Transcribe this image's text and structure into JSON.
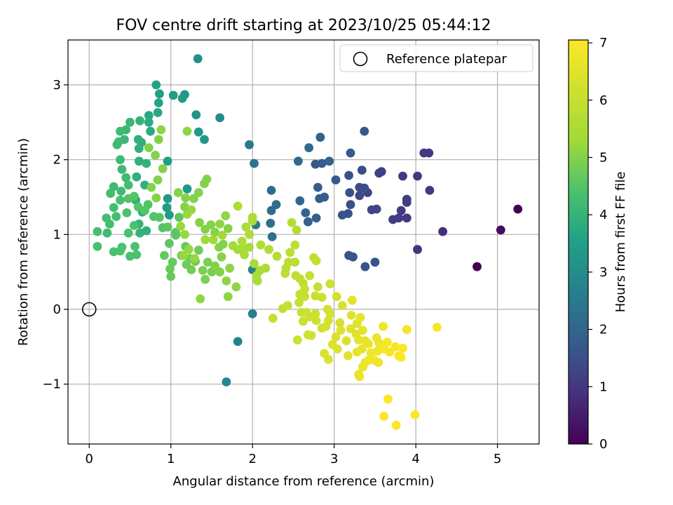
{
  "chart_data": {
    "type": "scatter",
    "title": "FOV centre drift starting at 2023/10/25 05:44:12",
    "xlabel": "Angular distance from reference (arcmin)",
    "ylabel": "Rotation from reference (arcmin)",
    "xlim": [
      -0.26,
      5.51
    ],
    "ylim": [
      -1.8,
      3.6
    ],
    "xticks": [
      0,
      1,
      2,
      3,
      4,
      5
    ],
    "xtick_labels": [
      "0",
      "1",
      "2",
      "3",
      "4",
      "5"
    ],
    "yticks": [
      -1,
      0,
      1,
      2,
      3
    ],
    "ytick_labels": [
      "−1",
      "0",
      "1",
      "2",
      "3"
    ],
    "grid": true,
    "legend": {
      "label": "Reference platepar",
      "position": "upper right",
      "marker": "open circle"
    },
    "reference_point": {
      "x": 0,
      "y": 0
    },
    "colorbar": {
      "label": "Hours from first FF file",
      "colormap": "viridis",
      "range": [
        0,
        7.05
      ],
      "ticks": [
        0,
        1,
        2,
        3,
        4,
        5,
        6,
        7
      ],
      "tick_labels": [
        "0",
        "1",
        "2",
        "3",
        "4",
        "5",
        "6",
        "7"
      ]
    },
    "points": [
      [
        5.25,
        1.34,
        0.0
      ],
      [
        4.75,
        0.57,
        0.0
      ],
      [
        5.04,
        1.06,
        0.2
      ],
      [
        4.33,
        1.04,
        0.8
      ],
      [
        4.02,
        0.8,
        0.9
      ],
      [
        4.17,
        1.59,
        1.0
      ],
      [
        4.02,
        1.78,
        1.0
      ],
      [
        3.84,
        1.78,
        1.0
      ],
      [
        4.1,
        2.09,
        1.0
      ],
      [
        4.16,
        2.09,
        1.0
      ],
      [
        3.82,
        1.32,
        1.1
      ],
      [
        3.89,
        1.47,
        1.1
      ],
      [
        3.89,
        1.43,
        1.1
      ],
      [
        3.89,
        1.22,
        1.0
      ],
      [
        3.79,
        1.22,
        1.1
      ],
      [
        3.72,
        1.2,
        1.1
      ],
      [
        3.58,
        1.84,
        1.2
      ],
      [
        3.55,
        1.82,
        1.2
      ],
      [
        3.41,
        1.56,
        1.3
      ],
      [
        3.52,
        1.34,
        1.3
      ],
      [
        3.46,
        1.33,
        1.3
      ],
      [
        3.37,
        1.62,
        1.4
      ],
      [
        3.31,
        1.52,
        1.4
      ],
      [
        3.31,
        1.63,
        1.4
      ],
      [
        3.34,
        1.86,
        1.4
      ],
      [
        3.37,
        2.38,
        1.7
      ],
      [
        3.18,
        1.79,
        1.5
      ],
      [
        3.19,
        1.56,
        1.5
      ],
      [
        3.2,
        1.4,
        1.5
      ],
      [
        3.17,
        1.28,
        1.5
      ],
      [
        3.1,
        1.26,
        1.6
      ],
      [
        3.2,
        2.09,
        1.7
      ],
      [
        3.18,
        0.72,
        1.6
      ],
      [
        3.23,
        0.7,
        1.6
      ],
      [
        3.38,
        0.57,
        1.6
      ],
      [
        3.5,
        0.63,
        1.6
      ],
      [
        3.02,
        1.73,
        1.7
      ],
      [
        2.88,
        1.5,
        1.8
      ],
      [
        2.8,
        1.63,
        1.8
      ],
      [
        2.77,
        1.94,
        1.7
      ],
      [
        2.85,
        1.95,
        1.8
      ],
      [
        2.83,
        2.3,
        1.9
      ],
      [
        2.94,
        1.98,
        1.9
      ],
      [
        2.82,
        1.48,
        1.8
      ],
      [
        2.78,
        1.22,
        1.9
      ],
      [
        2.68,
        1.17,
        1.9
      ],
      [
        2.65,
        1.29,
        2.0
      ],
      [
        2.58,
        1.45,
        2.0
      ],
      [
        2.56,
        1.98,
        2.1
      ],
      [
        2.69,
        2.16,
        2.1
      ],
      [
        2.29,
        1.4,
        2.2
      ],
      [
        2.23,
        1.59,
        2.2
      ],
      [
        2.23,
        1.32,
        2.2
      ],
      [
        2.22,
        1.15,
        2.3
      ],
      [
        2.24,
        0.97,
        2.3
      ],
      [
        2.02,
        1.95,
        2.4
      ],
      [
        1.96,
        2.2,
        2.5
      ],
      [
        2.04,
        1.13,
        2.5
      ],
      [
        2.0,
        0.53,
        2.6
      ],
      [
        2.0,
        -0.06,
        2.6
      ],
      [
        1.82,
        -0.43,
        2.7
      ],
      [
        1.68,
        -0.97,
        2.8
      ],
      [
        1.6,
        2.56,
        3.0
      ],
      [
        1.33,
        3.35,
        3.1
      ],
      [
        1.41,
        2.27,
        3.3
      ],
      [
        1.34,
        2.37,
        3.3
      ],
      [
        1.31,
        2.6,
        3.2
      ],
      [
        1.2,
        1.61,
        3.3
      ],
      [
        1.17,
        2.87,
        3.3
      ],
      [
        1.14,
        2.82,
        3.4
      ],
      [
        1.03,
        2.86,
        3.4
      ],
      [
        0.96,
        1.48,
        3.3
      ],
      [
        0.95,
        1.36,
        3.4
      ],
      [
        0.98,
        1.26,
        3.4
      ],
      [
        0.96,
        1.98,
        3.5
      ],
      [
        0.86,
        2.88,
        3.5
      ],
      [
        0.85,
        2.76,
        3.6
      ],
      [
        0.82,
        3.0,
        3.6
      ],
      [
        0.84,
        2.63,
        3.7
      ],
      [
        0.73,
        2.59,
        3.7
      ],
      [
        0.75,
        2.38,
        3.8
      ],
      [
        0.73,
        2.5,
        3.8
      ],
      [
        0.64,
        2.23,
        3.9
      ],
      [
        0.61,
        2.15,
        3.9
      ],
      [
        0.6,
        2.27,
        3.9
      ],
      [
        0.61,
        1.98,
        3.9
      ],
      [
        0.58,
        1.77,
        3.9
      ],
      [
        0.57,
        1.46,
        3.9
      ],
      [
        0.61,
        1.14,
        4.0
      ],
      [
        0.62,
        1.02,
        4.0
      ],
      [
        0.65,
        1.3,
        3.9
      ],
      [
        0.7,
        1.05,
        3.9
      ],
      [
        0.68,
        1.66,
        3.9
      ],
      [
        0.7,
        1.95,
        4.0
      ],
      [
        0.62,
        2.52,
        4.0
      ],
      [
        0.5,
        2.5,
        4.1
      ],
      [
        0.45,
        2.4,
        4.1
      ],
      [
        0.43,
        2.27,
        4.1
      ],
      [
        0.38,
        2.38,
        4.2
      ],
      [
        0.36,
        2.24,
        4.2
      ],
      [
        0.34,
        2.2,
        4.2
      ],
      [
        0.38,
        2.0,
        4.2
      ],
      [
        0.4,
        1.87,
        4.2
      ],
      [
        0.45,
        1.76,
        4.2
      ],
      [
        0.48,
        1.66,
        4.3
      ],
      [
        0.39,
        1.58,
        4.2
      ],
      [
        0.3,
        1.64,
        4.2
      ],
      [
        0.26,
        1.55,
        4.3
      ],
      [
        0.3,
        1.36,
        4.3
      ],
      [
        0.33,
        1.24,
        4.3
      ],
      [
        0.25,
        1.14,
        4.3
      ],
      [
        0.21,
        1.22,
        4.3
      ],
      [
        0.22,
        1.02,
        4.2
      ],
      [
        0.1,
        1.04,
        4.3
      ],
      [
        0.1,
        0.84,
        4.4
      ],
      [
        0.3,
        0.77,
        4.4
      ],
      [
        0.38,
        0.78,
        4.4
      ],
      [
        0.4,
        0.83,
        4.4
      ],
      [
        0.5,
        0.71,
        4.4
      ],
      [
        0.56,
        0.84,
        4.4
      ],
      [
        0.58,
        0.73,
        4.4
      ],
      [
        0.48,
        1.02,
        4.4
      ],
      [
        0.55,
        1.12,
        4.4
      ],
      [
        0.46,
        1.29,
        4.4
      ],
      [
        0.38,
        1.46,
        4.4
      ],
      [
        0.48,
        1.48,
        4.5
      ],
      [
        0.55,
        1.51,
        4.5
      ],
      [
        0.6,
        1.37,
        4.5
      ],
      [
        0.68,
        1.32,
        4.5
      ],
      [
        0.72,
        1.4,
        4.5
      ],
      [
        0.79,
        1.24,
        4.5
      ],
      [
        0.86,
        1.23,
        4.5
      ],
      [
        0.9,
        1.09,
        4.5
      ],
      [
        0.96,
        1.1,
        4.6
      ],
      [
        1.06,
        0.99,
        4.6
      ],
      [
        1.1,
        1.23,
        4.6
      ],
      [
        1.06,
        1.03,
        4.6
      ],
      [
        0.98,
        0.88,
        4.6
      ],
      [
        0.92,
        0.72,
        4.7
      ],
      [
        1.02,
        0.63,
        4.7
      ],
      [
        1.0,
        0.44,
        4.7
      ],
      [
        0.99,
        0.54,
        4.7
      ],
      [
        1.13,
        0.72,
        4.7
      ],
      [
        1.18,
        0.84,
        4.7
      ],
      [
        1.19,
        0.6,
        4.8
      ],
      [
        1.25,
        0.53,
        4.8
      ],
      [
        1.23,
        0.68,
        4.8
      ],
      [
        1.3,
        0.64,
        4.8
      ],
      [
        1.34,
        0.79,
        4.8
      ],
      [
        1.39,
        0.52,
        4.9
      ],
      [
        1.42,
        0.4,
        4.9
      ],
      [
        1.45,
        0.63,
        4.9
      ],
      [
        1.5,
        0.5,
        4.9
      ],
      [
        1.54,
        0.58,
        5.0
      ],
      [
        1.62,
        0.7,
        5.0
      ],
      [
        1.6,
        0.5,
        5.0
      ],
      [
        1.59,
        0.83,
        5.0
      ],
      [
        1.64,
        0.87,
        5.0
      ],
      [
        1.72,
        0.55,
        5.1
      ],
      [
        1.7,
        0.17,
        5.1
      ],
      [
        1.68,
        0.38,
        5.1
      ],
      [
        1.8,
        0.3,
        5.1
      ],
      [
        1.36,
        0.14,
        5.1
      ],
      [
        1.35,
        1.16,
        5.0
      ],
      [
        1.42,
        1.07,
        5.0
      ],
      [
        1.49,
        1.13,
        5.0
      ],
      [
        1.54,
        1.03,
        5.0
      ],
      [
        1.7,
        1.08,
        5.0
      ],
      [
        1.6,
        1.14,
        5.1
      ],
      [
        1.67,
        1.25,
        5.1
      ],
      [
        1.41,
        1.68,
        5.0
      ],
      [
        1.44,
        1.74,
        5.0
      ],
      [
        1.34,
        1.56,
        5.0
      ],
      [
        1.28,
        1.48,
        5.0
      ],
      [
        1.17,
        1.37,
        5.0
      ],
      [
        1.18,
        1.49,
        5.0
      ],
      [
        1.09,
        1.56,
        5.0
      ],
      [
        0.82,
        1.49,
        5.0
      ],
      [
        0.76,
        1.63,
        5.0
      ],
      [
        0.84,
        1.73,
        5.0
      ],
      [
        0.9,
        1.88,
        5.0
      ],
      [
        0.81,
        2.06,
        5.0
      ],
      [
        0.73,
        2.16,
        5.0
      ],
      [
        0.85,
        2.27,
        5.0
      ],
      [
        0.88,
        2.4,
        5.1
      ],
      [
        1.2,
        2.38,
        5.1
      ],
      [
        1.25,
        1.33,
        5.2
      ],
      [
        1.2,
        1.27,
        5.2
      ],
      [
        1.12,
        1.11,
        5.2
      ],
      [
        1.17,
        1.0,
        5.2
      ],
      [
        1.15,
        0.72,
        5.2
      ],
      [
        1.22,
        0.8,
        5.2
      ],
      [
        1.29,
        0.68,
        5.2
      ],
      [
        1.42,
        0.93,
        5.3
      ],
      [
        1.52,
        0.93,
        5.3
      ],
      [
        1.63,
        0.99,
        5.3
      ],
      [
        1.76,
        0.85,
        5.3
      ],
      [
        1.82,
        0.8,
        5.4
      ],
      [
        1.88,
        0.83,
        5.4
      ],
      [
        1.9,
        0.73,
        5.4
      ],
      [
        1.96,
        0.83,
        5.4
      ],
      [
        2.02,
        0.61,
        5.4
      ],
      [
        2.05,
        0.45,
        5.5
      ],
      [
        2.09,
        0.52,
        5.5
      ],
      [
        2.06,
        0.38,
        5.5
      ],
      [
        2.16,
        0.55,
        5.5
      ],
      [
        2.2,
        0.8,
        5.6
      ],
      [
        2.1,
        0.86,
        5.6
      ],
      [
        2.0,
        1.18,
        5.5
      ],
      [
        2.0,
        1.23,
        5.5
      ],
      [
        1.92,
        1.1,
        5.5
      ],
      [
        1.82,
        1.38,
        5.5
      ],
      [
        1.87,
        0.91,
        5.6
      ],
      [
        1.96,
        1.0,
        5.6
      ],
      [
        2.3,
        0.71,
        5.7
      ],
      [
        2.4,
        0.48,
        5.8
      ],
      [
        2.41,
        0.55,
        5.8
      ],
      [
        2.44,
        0.63,
        5.8
      ],
      [
        2.46,
        0.76,
        5.8
      ],
      [
        2.52,
        0.86,
        5.8
      ],
      [
        2.52,
        0.63,
        5.8
      ],
      [
        2.53,
        0.45,
        5.9
      ],
      [
        2.58,
        0.41,
        5.9
      ],
      [
        2.62,
        0.35,
        5.9
      ],
      [
        2.64,
        0.27,
        6.0
      ],
      [
        2.7,
        0.45,
        6.0
      ],
      [
        2.64,
        0.17,
        6.0
      ],
      [
        2.58,
        0.2,
        6.0
      ],
      [
        2.57,
        0.09,
        6.0
      ],
      [
        2.6,
        -0.04,
        6.0
      ],
      [
        2.66,
        -0.04,
        6.1
      ],
      [
        2.62,
        -0.16,
        6.1
      ],
      [
        2.7,
        -0.1,
        6.1
      ],
      [
        2.78,
        -0.15,
        6.1
      ],
      [
        2.77,
        -0.06,
        6.1
      ],
      [
        2.77,
        0.18,
        6.0
      ],
      [
        2.8,
        0.3,
        6.0
      ],
      [
        2.78,
        0.65,
        5.9
      ],
      [
        2.75,
        0.69,
        5.9
      ],
      [
        2.48,
        1.16,
        5.7
      ],
      [
        2.54,
        1.06,
        5.7
      ],
      [
        2.37,
        0.01,
        5.9
      ],
      [
        2.43,
        0.05,
        6.0
      ],
      [
        2.25,
        -0.12,
        6.0
      ],
      [
        2.55,
        -0.41,
        6.1
      ],
      [
        2.68,
        -0.34,
        6.2
      ],
      [
        2.72,
        -0.35,
        6.2
      ],
      [
        2.85,
        -0.25,
        6.2
      ],
      [
        2.9,
        -0.23,
        6.2
      ],
      [
        2.93,
        -0.15,
        6.2
      ],
      [
        2.95,
        -0.06,
        6.3
      ],
      [
        2.92,
        0.0,
        6.2
      ],
      [
        2.85,
        0.16,
        6.1
      ],
      [
        2.95,
        0.34,
        6.1
      ],
      [
        3.03,
        0.17,
        6.2
      ],
      [
        3.1,
        0.05,
        6.3
      ],
      [
        3.07,
        -0.18,
        6.3
      ],
      [
        3.08,
        -0.28,
        6.4
      ],
      [
        3.02,
        -0.37,
        6.4
      ],
      [
        3.04,
        -0.53,
        6.4
      ],
      [
        2.98,
        -0.47,
        6.4
      ],
      [
        2.88,
        -0.59,
        6.4
      ],
      [
        2.93,
        -0.67,
        6.4
      ],
      [
        3.15,
        -0.42,
        6.4
      ],
      [
        3.17,
        -0.62,
        6.5
      ],
      [
        3.2,
        -0.26,
        6.5
      ],
      [
        3.21,
        -0.08,
        6.5
      ],
      [
        3.22,
        0.12,
        6.5
      ],
      [
        3.28,
        -0.19,
        6.5
      ],
      [
        3.27,
        -0.33,
        6.5
      ],
      [
        3.32,
        -0.11,
        6.6
      ],
      [
        3.35,
        -0.28,
        6.6
      ],
      [
        3.38,
        -0.42,
        6.6
      ],
      [
        3.34,
        -0.53,
        6.6
      ],
      [
        3.28,
        -0.57,
        6.6
      ],
      [
        3.3,
        -0.87,
        6.6
      ],
      [
        3.31,
        -0.9,
        6.7
      ],
      [
        3.35,
        -0.77,
        6.7
      ],
      [
        3.38,
        -0.71,
        6.7
      ],
      [
        3.42,
        -0.68,
        6.8
      ],
      [
        3.45,
        -0.58,
        6.8
      ],
      [
        3.49,
        -0.68,
        6.8
      ],
      [
        3.53,
        -0.56,
        6.8
      ],
      [
        3.55,
        -0.45,
        6.8
      ],
      [
        3.54,
        -0.71,
        6.8
      ],
      [
        3.61,
        -0.53,
        6.9
      ],
      [
        3.6,
        -0.23,
        6.8
      ],
      [
        3.65,
        -0.44,
        6.9
      ],
      [
        3.68,
        -0.57,
        6.9
      ],
      [
        3.75,
        -0.5,
        6.9
      ],
      [
        3.79,
        -0.62,
        7.0
      ],
      [
        3.82,
        -0.64,
        7.0
      ],
      [
        3.84,
        -0.52,
        7.0
      ],
      [
        3.89,
        -0.27,
        6.9
      ],
      [
        3.61,
        -1.43,
        7.0
      ],
      [
        3.66,
        -1.2,
        7.0
      ],
      [
        3.76,
        -1.55,
        7.0
      ],
      [
        3.99,
        -1.41,
        7.0
      ],
      [
        4.26,
        -0.24,
        6.9
      ],
      [
        3.52,
        -0.38,
        6.7
      ],
      [
        3.42,
        -0.46,
        6.7
      ],
      [
        3.3,
        -0.41,
        6.6
      ]
    ]
  }
}
